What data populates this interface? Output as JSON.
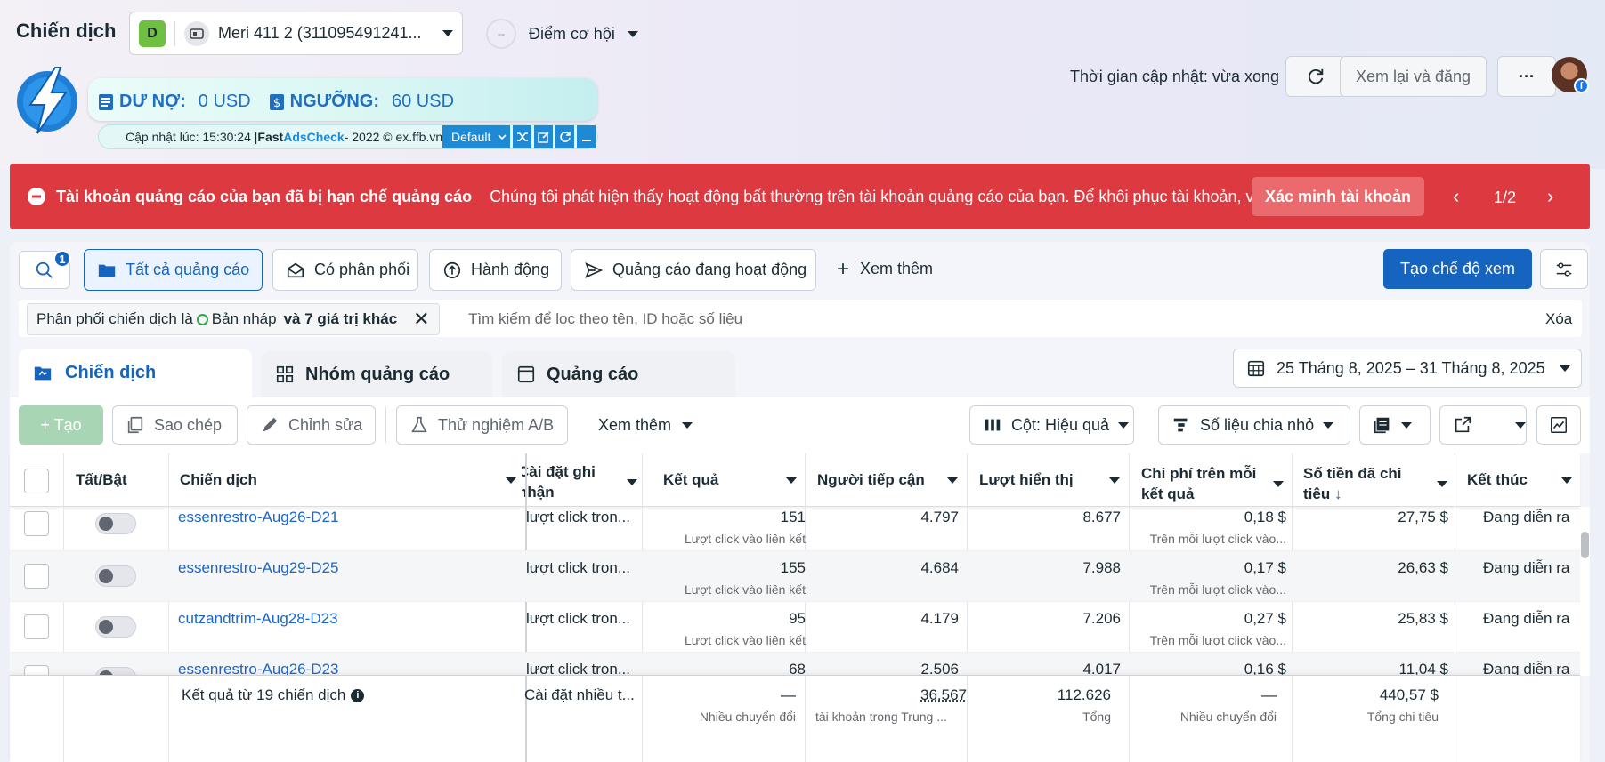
{
  "header": {
    "page_title": "Chiến dịch",
    "account_badge": "D",
    "account_name": "Meri 411 2 (311095491241...",
    "opportunity_label": "Điểm cơ hội",
    "update_time": "Thời gian cập nhật: vừa xong",
    "review_publish": "Xem lại và đăng",
    "more_dots": "···"
  },
  "ext": {
    "debt_label": "DƯ NỢ:",
    "debt_value": "0 USD",
    "threshold_label": "NGƯỠNG:",
    "threshold_value": "60 USD",
    "footer_prefix": "Cập nhật lúc: 15:30:24 | ",
    "brand_fast": "Fast ",
    "brand_ads": "AdsCheck",
    "footer_suffix": " - 2022 © ex.ffb.vn",
    "default_label": "Default"
  },
  "alert": {
    "title": "Tài khoản quảng cáo của bạn đã bị hạn chế quảng cáo",
    "message": "Chúng tôi phát hiện thấy hoạt động bất thường trên tài khoản quảng cáo của bạn. Để khôi phục tài khoản, vu...",
    "button": "Xác minh tài khoản",
    "pager": "1/2"
  },
  "toolbar": {
    "search_badge": "1",
    "all_ads": "Tất cả quảng cáo",
    "has_delivery": "Có phân phối",
    "actions": "Hành động",
    "active_ads": "Quảng cáo đang hoạt động",
    "see_more": "Xem thêm",
    "create_view": "Tạo chế độ xem"
  },
  "filter": {
    "prefix": "Phân phối chiến dịch là ",
    "value": "Bản nháp",
    "suffix": "và 7 giá trị khác",
    "placeholder": "Tìm kiếm để lọc theo tên, ID hoặc số liệu",
    "clear": "Xóa"
  },
  "tabs": {
    "campaigns": "Chiến dịch",
    "ad_sets": "Nhóm quảng cáo",
    "ads": "Quảng cáo",
    "date_range": "25 Tháng 8, 2025 – 31 Tháng 8, 2025"
  },
  "actions": {
    "create": "+ Tạo",
    "copy": "Sao chép",
    "edit": "Chỉnh sửa",
    "ab_test": "Thử nghiệm A/B",
    "more": "Xem thêm",
    "columns": "Cột: Hiệu quả",
    "breakdown": "Số liệu chia nhỏ"
  },
  "table": {
    "headers": {
      "toggle": "Tất/Bật",
      "campaign": "Chiến dịch",
      "attribution": "Cài đặt ghi nhận",
      "results": "Kết quả",
      "reach": "Người tiếp cận",
      "impressions": "Lượt hiển thị",
      "cost_per_result": "Chi phí trên mỗi kết quả",
      "amount_spent": "Số tiền đã chi tiêu",
      "ends": "Kết thúc"
    },
    "rows": [
      {
        "name": "essenrestro-Aug26-D21",
        "attribution": "lượt click tron...",
        "results": "151",
        "results_sub": "Lượt click vào liên kết",
        "reach": "4.797",
        "impressions": "8.677",
        "cpr": "0,18 $",
        "cpr_sub": "Trên mỗi lượt click vào...",
        "spent": "27,75 $",
        "ends": "Đang diễn ra"
      },
      {
        "name": "essenrestro-Aug29-D25",
        "attribution": "lượt click tron...",
        "results": "155",
        "results_sub": "Lượt click vào liên kết",
        "reach": "4.684",
        "impressions": "7.988",
        "cpr": "0,17 $",
        "cpr_sub": "Trên mỗi lượt click vào...",
        "spent": "26,63 $",
        "ends": "Đang diễn ra"
      },
      {
        "name": "cutzandtrim-Aug28-D23",
        "attribution": "lượt click tron...",
        "results": "95",
        "results_sub": "Lượt click vào liên kết",
        "reach": "4.179",
        "impressions": "7.206",
        "cpr": "0,27 $",
        "cpr_sub": "Trên mỗi lượt click vào...",
        "spent": "25,83 $",
        "ends": "Đang diễn ra"
      },
      {
        "name": "essenrestro-Aug26-D23",
        "attribution": "lượt click tron...",
        "results": "68",
        "results_sub": "",
        "reach": "2.506",
        "impressions": "4.017",
        "cpr": "0,16 $",
        "cpr_sub": "",
        "spent": "11,04 $",
        "ends": "Đang diễn ra"
      }
    ],
    "summary": {
      "label": "Kết quả từ 19 chiến dịch",
      "attribution": "Cài đặt nhiều t...",
      "results": "—",
      "results_sub": "Nhiều chuyển đổi",
      "reach": "36.567",
      "reach_sub": "tài khoản trong Trung ...",
      "impressions": "112.626",
      "impressions_sub": "Tổng",
      "cpr": "—",
      "cpr_sub": "Nhiều chuyển đổi",
      "spent": "440,57 $",
      "spent_sub": "Tổng chi tiêu"
    }
  },
  "colors": {
    "alert": "#d9373d",
    "primary": "#1565c0",
    "link": "#1b66c9"
  }
}
